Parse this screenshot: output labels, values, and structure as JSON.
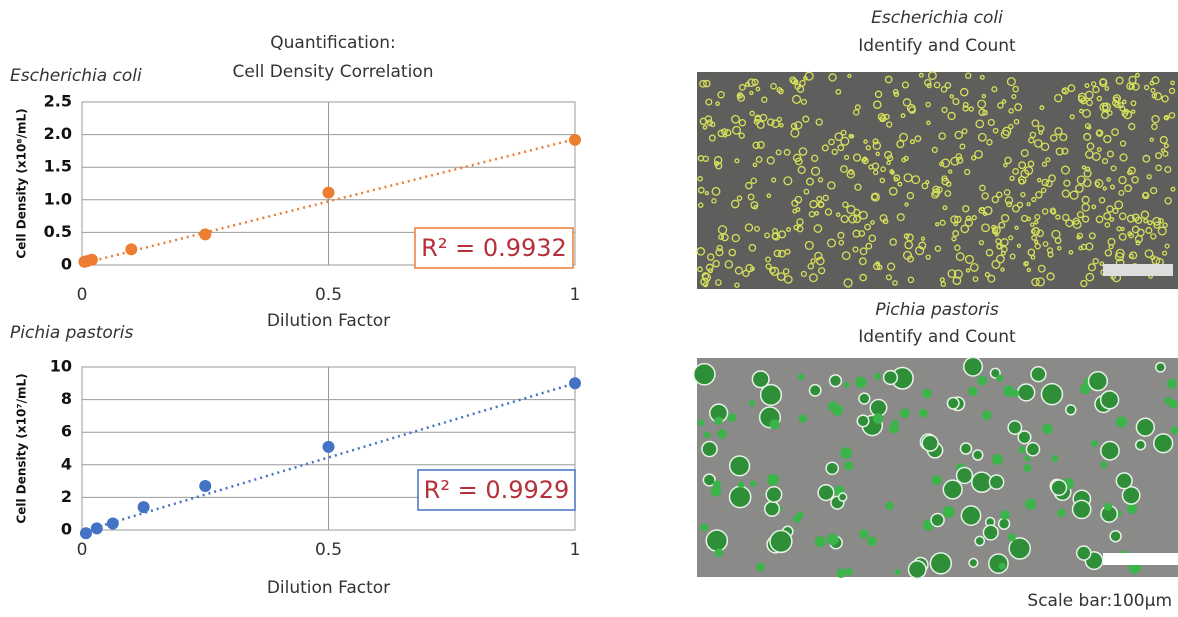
{
  "header": {
    "line1": "Quantification:",
    "line2": "Cell Density Correlation"
  },
  "chart_data": [
    {
      "type": "scatter",
      "subtitle": "Escherichia coli",
      "y_label": "Cell Density (x10⁸/mL)",
      "x_label": "Dilution Factor",
      "x": [
        0.005,
        0.01,
        0.02,
        0.1,
        0.25,
        0.5,
        1
      ],
      "values": [
        0.05,
        0.06,
        0.08,
        0.24,
        0.47,
        1.11,
        1.92
      ],
      "color": "#ed7d31",
      "trendline": {
        "x": [
          0,
          1
        ],
        "y": [
          0.02,
          1.93
        ]
      },
      "annotation": "R² = 0.9932",
      "xlim": [
        0,
        1
      ],
      "xticks": [
        0,
        0.5,
        1
      ],
      "ylim": [
        0,
        2.5
      ],
      "yticks": [
        0,
        0.5,
        {
          "value": 1,
          "label": "1.0"
        },
        1.5,
        {
          "value": 2,
          "label": "2.0"
        },
        2.5
      ],
      "grid": true
    },
    {
      "type": "scatter",
      "subtitle": "Pichia pastoris",
      "y_label": "Cell Density (x10⁷/mL)",
      "x_label": "Dilution Factor",
      "x": [
        0.008,
        0.03,
        0.0625,
        0.125,
        0.25,
        0.5,
        1
      ],
      "values": [
        -0.2,
        0.1,
        0.4,
        1.4,
        2.7,
        5.1,
        9
      ],
      "color": "#4472c4",
      "trendline": {
        "x": [
          0,
          1
        ],
        "y": [
          -0.1,
          9
        ]
      },
      "annotation": "R² = 0.9929",
      "xlim": [
        0,
        1
      ],
      "xticks": [
        0,
        0.5,
        1
      ],
      "ylim": [
        0,
        10
      ],
      "yticks": [
        0,
        2,
        4,
        6,
        8,
        10
      ],
      "grid": true
    }
  ],
  "images": [
    {
      "species": "Escherichia coli",
      "caption": "Identify and Count"
    },
    {
      "species": "Pichia pastoris",
      "caption": "Identify and Count"
    }
  ],
  "scale_note": "Scale bar:100μm"
}
